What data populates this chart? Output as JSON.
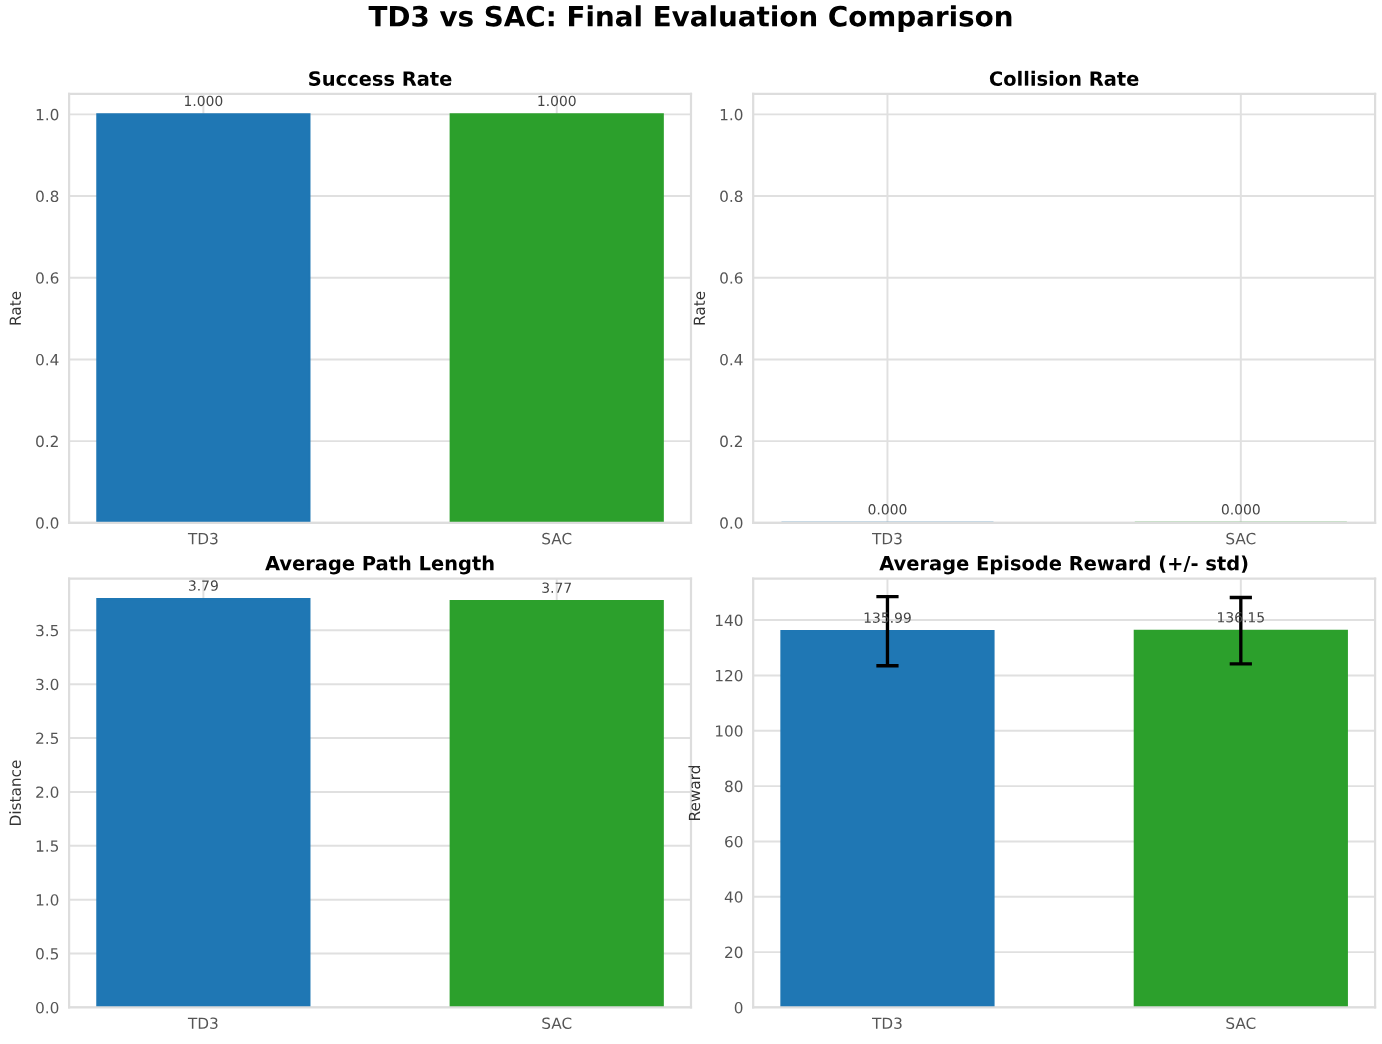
{
  "chart_data": [
    {
      "type": "bar",
      "title": "Success Rate",
      "ylabel": "Rate",
      "annotations": [
        "TD3 vs SAC: Final Evaluation Comparison"
      ],
      "categories": [
        "TD3",
        "SAC"
      ],
      "values": [
        1.0,
        1.0
      ],
      "colors": [
        "#1f77b4",
        "#2ca02c"
      ],
      "value_labels": [
        "1.000",
        "1.000"
      ],
      "ylim": [
        0,
        1.05
      ],
      "yticks": [
        {
          "value": 0,
          "label": "0.0"
        },
        0.2,
        0.4,
        0.6,
        0.8,
        {
          "value": 1,
          "label": "1.0"
        }
      ],
      "grid": true
    },
    {
      "type": "bar",
      "title": "Collision Rate",
      "ylabel": "Rate",
      "categories": [
        "TD3",
        "SAC"
      ],
      "values": [
        0,
        0
      ],
      "colors": [
        "#1f77b4",
        "#2ca02c"
      ],
      "value_labels": [
        "0.000",
        "0.000"
      ],
      "ylim": [
        0,
        1.05
      ],
      "yticks": [
        {
          "value": 0,
          "label": "0.0"
        },
        0.2,
        0.4,
        0.6,
        0.8,
        {
          "value": 1,
          "label": "1.0"
        }
      ],
      "grid": true
    },
    {
      "type": "bar",
      "title": "Average Path Length",
      "ylabel": "Distance",
      "categories": [
        "TD3",
        "SAC"
      ],
      "values": [
        3.79,
        3.77
      ],
      "colors": [
        "#1f77b4",
        "#2ca02c"
      ],
      "value_labels": [
        "3.79",
        "3.77"
      ],
      "ylim": [
        0,
        3.98
      ],
      "yticks": [
        {
          "value": 0,
          "label": "0.0"
        },
        0.5,
        {
          "value": 1,
          "label": "1.0"
        },
        1.5,
        {
          "value": 2,
          "label": "2.0"
        },
        2.5,
        {
          "value": 3,
          "label": "3.0"
        },
        3.5
      ],
      "grid": true
    },
    {
      "type": "bar",
      "title": "Average Episode Reward (+/- std)",
      "ylabel": "Reward",
      "categories": [
        "TD3",
        "SAC"
      ],
      "values": [
        135.99,
        136.15
      ],
      "errors": [
        12.5,
        12
      ],
      "colors": [
        "#1f77b4",
        "#2ca02c"
      ],
      "value_labels": [
        "135.99",
        "136.15"
      ],
      "ylim": [
        0,
        155
      ],
      "yticks": [
        0,
        20,
        40,
        60,
        80,
        100,
        120,
        140
      ],
      "grid": true
    }
  ]
}
